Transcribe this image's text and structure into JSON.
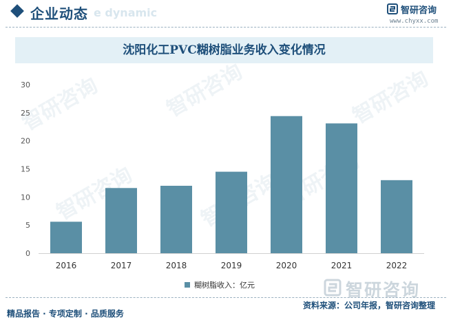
{
  "header": {
    "section_title": "企业动态",
    "section_subtitle": "e dynamic",
    "brand_name": "智研咨询",
    "brand_url": "www.chyxx.com"
  },
  "watermark": {
    "text": "智研咨询"
  },
  "colors": {
    "accent": "#1e4f7a",
    "bar": "#5a8fa5",
    "title_band": "#e3f0f6"
  },
  "legend": {
    "label": "糊树脂收入：亿元"
  },
  "footer": {
    "left": "精品报告 · 专项定制 · 品质服务",
    "right": "资料来源：公司年报，智研咨询整理"
  },
  "chart_data": {
    "type": "bar",
    "title": "沈阳化工PVC糊树脂业务收入变化情况",
    "categories": [
      "2016",
      "2017",
      "2018",
      "2019",
      "2020",
      "2021",
      "2022"
    ],
    "series": [
      {
        "name": "糊树脂收入：亿元",
        "values": [
          5.6,
          11.6,
          12.0,
          14.5,
          24.4,
          23.1,
          13.0
        ]
      }
    ],
    "ylim": [
      0,
      30
    ],
    "yticks": [
      0,
      5,
      10,
      15,
      20,
      25,
      30
    ],
    "grid": false,
    "legend_position": "bottom"
  }
}
